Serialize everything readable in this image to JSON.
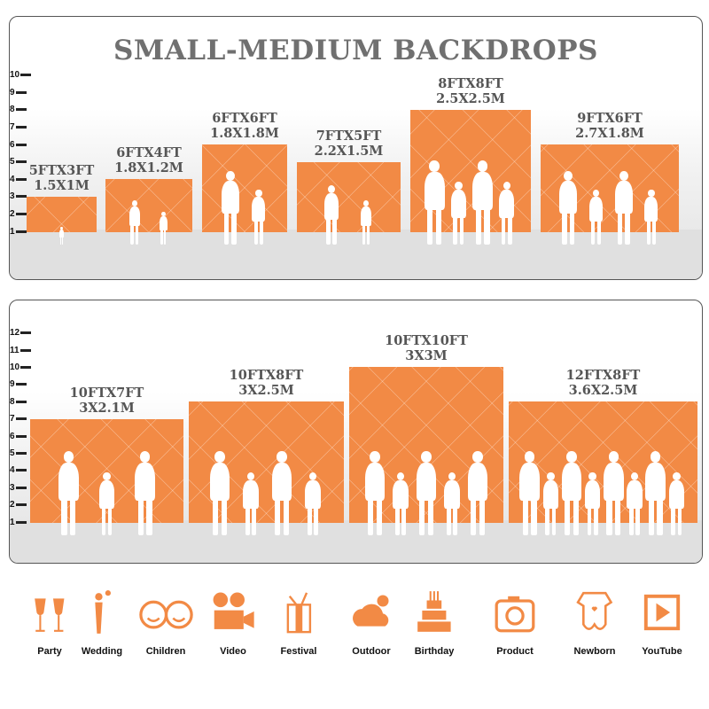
{
  "title": "SMALL-MEDIUM BACKDROPS",
  "accent": "#f28a45",
  "panels": [
    {
      "ticks": [
        1,
        2,
        3,
        4,
        5,
        6,
        7,
        8,
        9,
        10
      ],
      "backdrops": [
        {
          "ft": "5FTX3FT",
          "m": "1.5X1M",
          "height_ft": 3,
          "people": 1
        },
        {
          "ft": "6FTX4FT",
          "m": "1.8X1.2M",
          "height_ft": 4,
          "people": 2
        },
        {
          "ft": "6FTX6FT",
          "m": "1.8X1.8M",
          "height_ft": 6,
          "people": 2
        },
        {
          "ft": "7FTX5FT",
          "m": "2.2X1.5M",
          "height_ft": 5,
          "people": 2
        },
        {
          "ft": "8FTX8FT",
          "m": "2.5X2.5M",
          "height_ft": 8,
          "people": 4
        },
        {
          "ft": "9FTX6FT",
          "m": "2.7X1.8M",
          "height_ft": 6,
          "people": 4
        }
      ]
    },
    {
      "ticks": [
        1,
        2,
        3,
        4,
        5,
        6,
        7,
        8,
        9,
        10,
        11,
        12
      ],
      "backdrops": [
        {
          "ft": "10FTX7FT",
          "m": "3X2.1M",
          "height_ft": 7,
          "people": 3
        },
        {
          "ft": "10FTX8FT",
          "m": "3X2.5M",
          "height_ft": 8,
          "people": 4
        },
        {
          "ft": "10FTX10FT",
          "m": "3X3M",
          "height_ft": 10,
          "people": 5
        },
        {
          "ft": "12FTX8FT",
          "m": "3.6X2.5M",
          "height_ft": 8,
          "people": 8
        }
      ]
    }
  ],
  "uses": [
    {
      "label": "Party",
      "icon": "cheers-glasses-icon"
    },
    {
      "label": "Wedding",
      "icon": "wedding-couple-icon"
    },
    {
      "label": "Children",
      "icon": "children-faces-icon"
    },
    {
      "label": "Video",
      "icon": "video-camera-icon"
    },
    {
      "label": "Festival",
      "icon": "gift-box-icon"
    },
    {
      "label": "Outdoor",
      "icon": "cloud-icon"
    },
    {
      "label": "Birthday",
      "icon": "birthday-cake-icon"
    },
    {
      "label": "Product",
      "icon": "camera-icon"
    },
    {
      "label": "Newborn",
      "icon": "baby-onesie-icon"
    },
    {
      "label": "YouTube",
      "icon": "play-button-icon"
    }
  ]
}
